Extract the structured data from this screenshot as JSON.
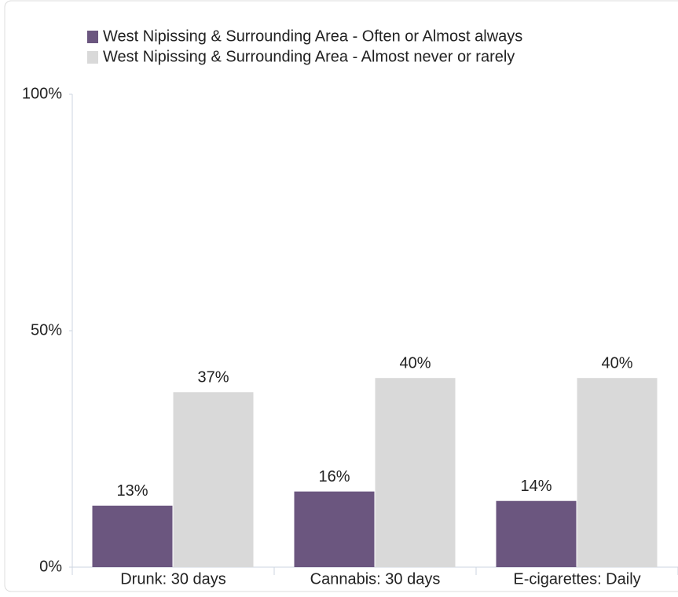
{
  "chart_data": {
    "type": "bar",
    "categories": [
      "Drunk: 30 days",
      "Cannabis: 30 days",
      "E-cigarettes: Daily"
    ],
    "series": [
      {
        "name": "West Nipissing & Surrounding Area - Often or Almost always",
        "color": "#6b567f",
        "values": [
          13,
          16,
          14
        ],
        "value_labels": [
          "13%",
          "16%",
          "14%"
        ]
      },
      {
        "name": "West Nipissing & Surrounding Area - Almost never or rarely",
        "color": "#d9d9d9",
        "values": [
          37,
          40,
          40
        ],
        "value_labels": [
          "37%",
          "40%",
          "40%"
        ]
      }
    ],
    "ylim": [
      0,
      100
    ],
    "yticks": [
      {
        "value": 0,
        "label": "0%"
      },
      {
        "value": 50,
        "label": "50%"
      },
      {
        "value": 100,
        "label": "100%"
      }
    ],
    "legend": "top"
  }
}
